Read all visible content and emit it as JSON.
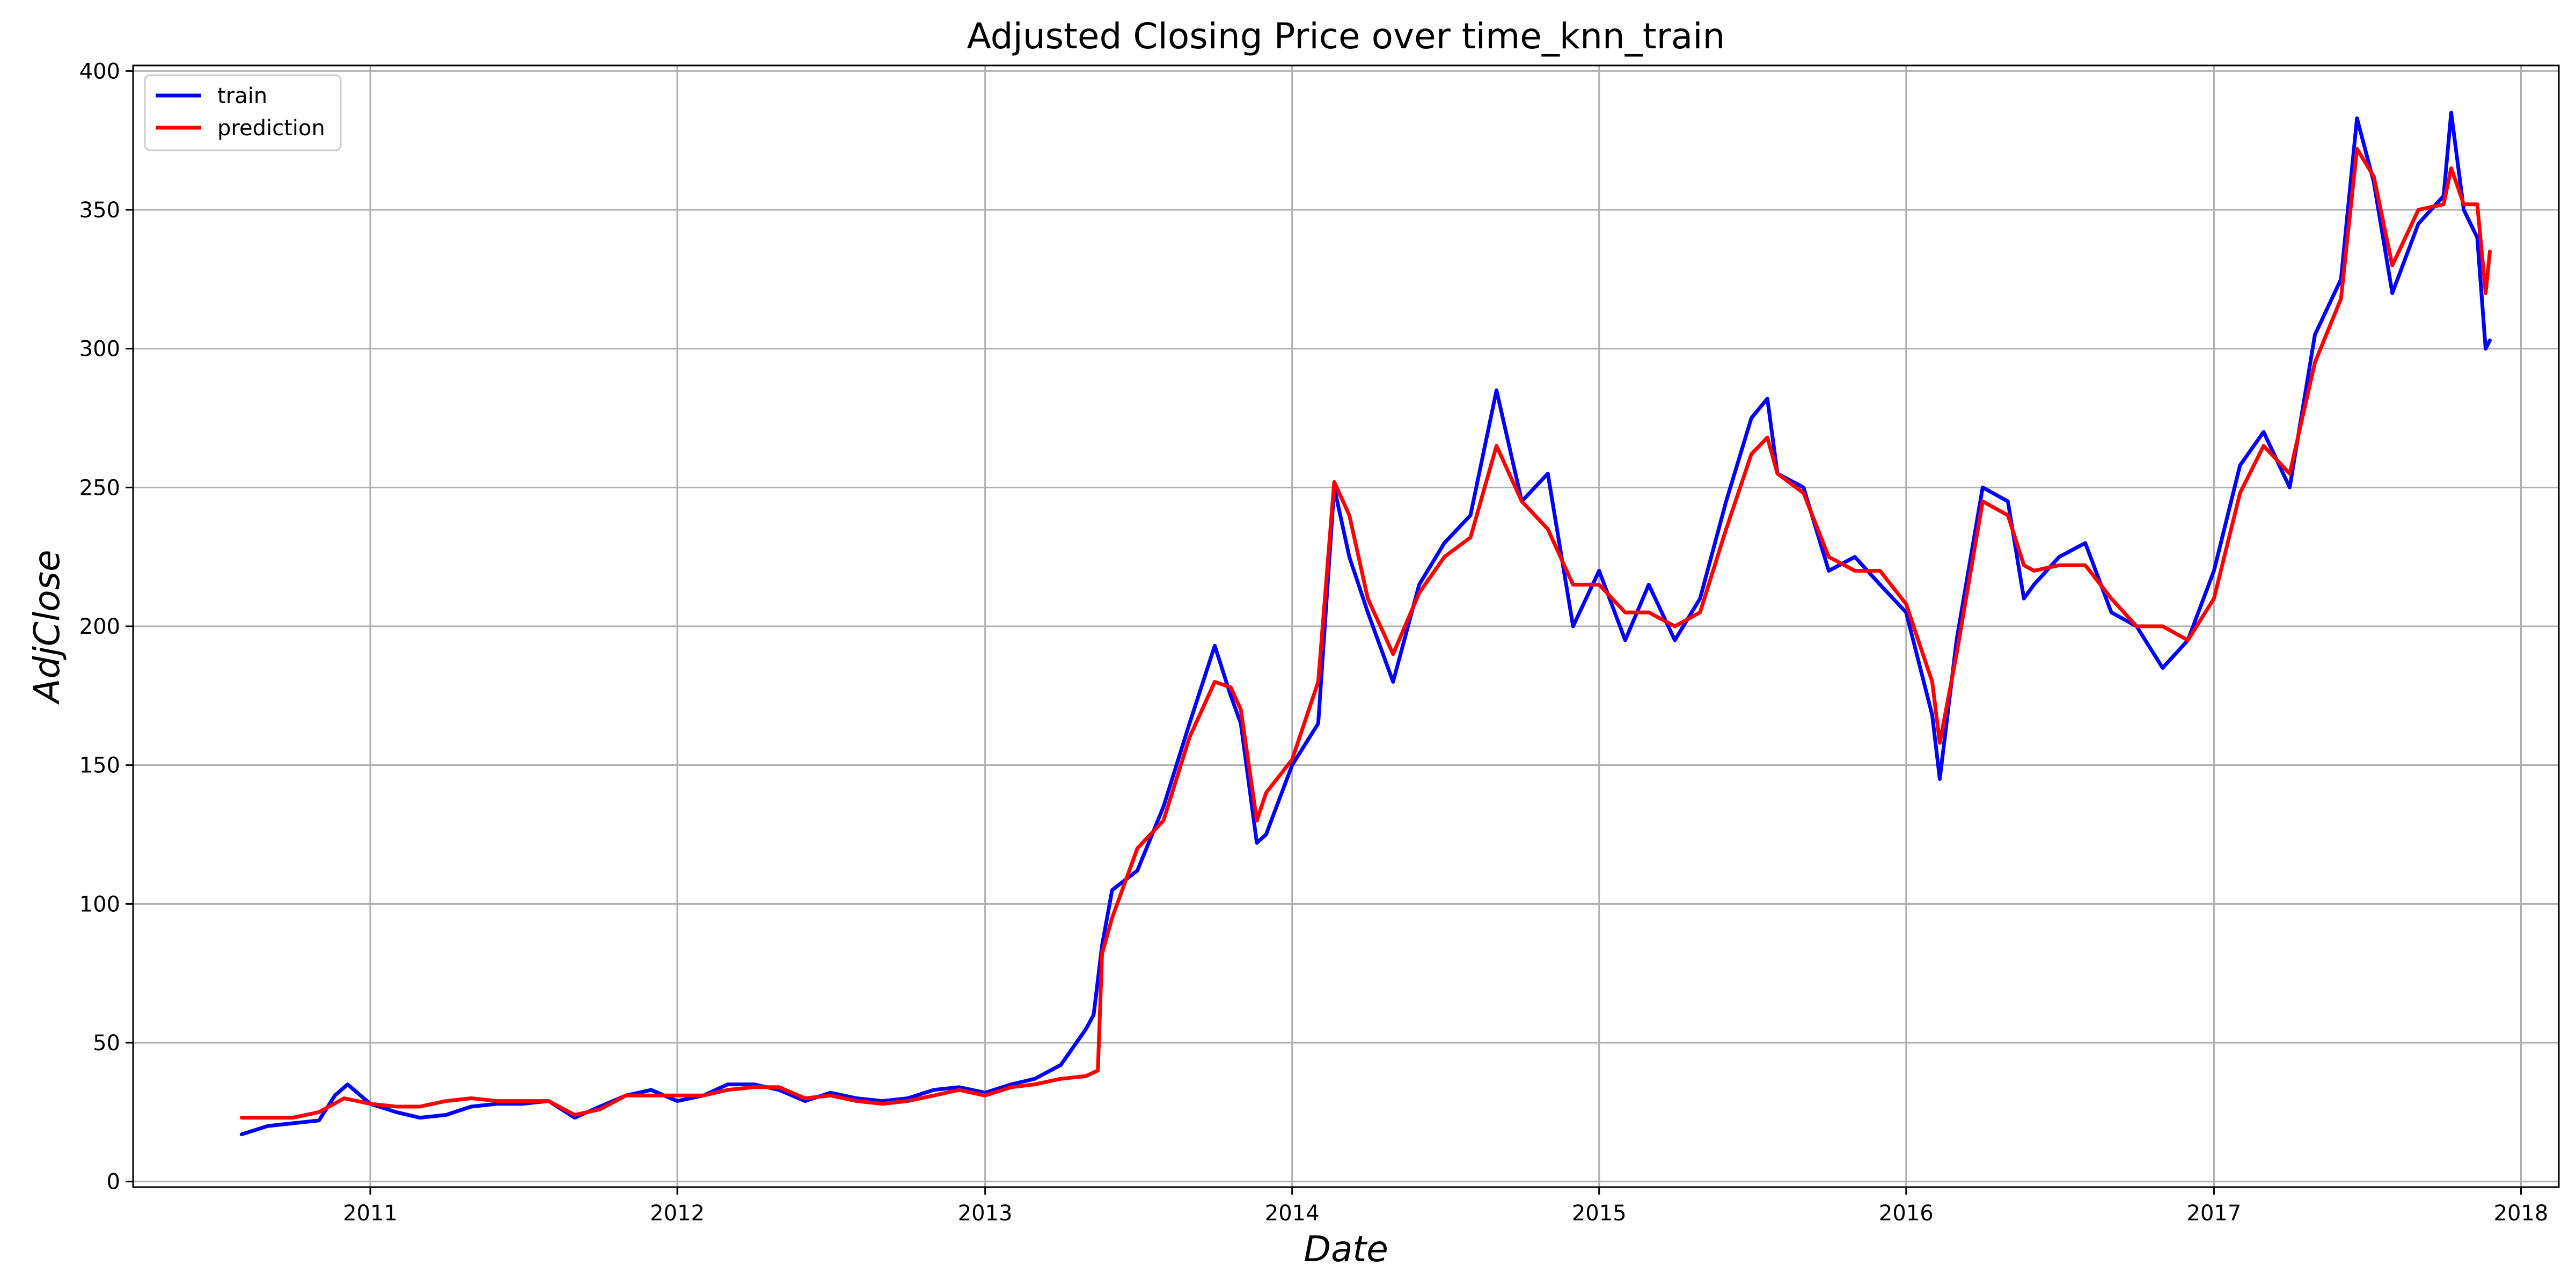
{
  "chart_data": {
    "type": "line",
    "title": "Adjusted Closing Price over time_knn_train",
    "xlabel": "Date",
    "ylabel": "AdjClose",
    "x_axis_type": "date",
    "xlim": [
      "2010-03-25",
      "2018-02-15"
    ],
    "ylim": [
      -2,
      402
    ],
    "x_ticks": [
      {
        "date": "2011-01-01",
        "label": "2011"
      },
      {
        "date": "2012-01-01",
        "label": "2012"
      },
      {
        "date": "2013-01-01",
        "label": "2013"
      },
      {
        "date": "2014-01-01",
        "label": "2014"
      },
      {
        "date": "2015-01-01",
        "label": "2015"
      },
      {
        "date": "2016-01-01",
        "label": "2016"
      },
      {
        "date": "2017-01-01",
        "label": "2017"
      },
      {
        "date": "2018-01-01",
        "label": "2018"
      }
    ],
    "y_ticks": [
      0,
      50,
      100,
      150,
      200,
      250,
      300,
      350,
      400
    ],
    "grid": true,
    "legend_position": "top-left",
    "series": [
      {
        "name": "train",
        "color": "#0000ff",
        "points": [
          [
            "2010-08-01",
            17
          ],
          [
            "2010-09-01",
            20
          ],
          [
            "2010-10-01",
            21
          ],
          [
            "2010-11-01",
            22
          ],
          [
            "2010-11-20",
            31
          ],
          [
            "2010-12-05",
            35
          ],
          [
            "2011-01-01",
            28
          ],
          [
            "2011-02-01",
            25
          ],
          [
            "2011-03-01",
            23
          ],
          [
            "2011-04-01",
            24
          ],
          [
            "2011-05-01",
            27
          ],
          [
            "2011-06-01",
            28
          ],
          [
            "2011-07-01",
            28
          ],
          [
            "2011-08-01",
            29
          ],
          [
            "2011-09-01",
            23
          ],
          [
            "2011-10-01",
            27
          ],
          [
            "2011-11-01",
            31
          ],
          [
            "2011-12-01",
            33
          ],
          [
            "2012-01-01",
            29
          ],
          [
            "2012-02-01",
            31
          ],
          [
            "2012-03-01",
            35
          ],
          [
            "2012-04-01",
            35
          ],
          [
            "2012-05-01",
            33
          ],
          [
            "2012-06-01",
            29
          ],
          [
            "2012-07-01",
            32
          ],
          [
            "2012-08-01",
            30
          ],
          [
            "2012-09-01",
            29
          ],
          [
            "2012-10-01",
            30
          ],
          [
            "2012-11-01",
            33
          ],
          [
            "2012-12-01",
            34
          ],
          [
            "2013-01-01",
            32
          ],
          [
            "2013-02-01",
            35
          ],
          [
            "2013-03-01",
            37
          ],
          [
            "2013-04-01",
            42
          ],
          [
            "2013-05-01",
            55
          ],
          [
            "2013-05-10",
            60
          ],
          [
            "2013-05-20",
            85
          ],
          [
            "2013-06-01",
            105
          ],
          [
            "2013-07-01",
            112
          ],
          [
            "2013-08-01",
            135
          ],
          [
            "2013-09-01",
            165
          ],
          [
            "2013-10-01",
            193
          ],
          [
            "2013-10-20",
            175
          ],
          [
            "2013-11-01",
            165
          ],
          [
            "2013-11-20",
            122
          ],
          [
            "2013-12-01",
            125
          ],
          [
            "2014-01-01",
            150
          ],
          [
            "2014-02-01",
            165
          ],
          [
            "2014-02-20",
            250
          ],
          [
            "2014-03-10",
            225
          ],
          [
            "2014-04-01",
            205
          ],
          [
            "2014-05-01",
            180
          ],
          [
            "2014-06-01",
            215
          ],
          [
            "2014-07-01",
            230
          ],
          [
            "2014-08-01",
            240
          ],
          [
            "2014-09-01",
            285
          ],
          [
            "2014-10-01",
            245
          ],
          [
            "2014-11-01",
            255
          ],
          [
            "2014-12-01",
            200
          ],
          [
            "2015-01-01",
            220
          ],
          [
            "2015-02-01",
            195
          ],
          [
            "2015-03-01",
            215
          ],
          [
            "2015-04-01",
            195
          ],
          [
            "2015-05-01",
            210
          ],
          [
            "2015-06-01",
            245
          ],
          [
            "2015-07-01",
            275
          ],
          [
            "2015-07-20",
            282
          ],
          [
            "2015-08-01",
            255
          ],
          [
            "2015-09-01",
            250
          ],
          [
            "2015-10-01",
            220
          ],
          [
            "2015-11-01",
            225
          ],
          [
            "2015-12-01",
            215
          ],
          [
            "2016-01-01",
            205
          ],
          [
            "2016-02-01",
            168
          ],
          [
            "2016-02-10",
            145
          ],
          [
            "2016-03-01",
            195
          ],
          [
            "2016-04-01",
            250
          ],
          [
            "2016-05-01",
            245
          ],
          [
            "2016-05-20",
            210
          ],
          [
            "2016-06-01",
            215
          ],
          [
            "2016-07-01",
            225
          ],
          [
            "2016-08-01",
            230
          ],
          [
            "2016-09-01",
            205
          ],
          [
            "2016-10-01",
            200
          ],
          [
            "2016-11-01",
            185
          ],
          [
            "2016-12-01",
            195
          ],
          [
            "2017-01-01",
            220
          ],
          [
            "2017-02-01",
            258
          ],
          [
            "2017-03-01",
            270
          ],
          [
            "2017-04-01",
            250
          ],
          [
            "2017-05-01",
            305
          ],
          [
            "2017-06-01",
            325
          ],
          [
            "2017-06-20",
            383
          ],
          [
            "2017-07-10",
            360
          ],
          [
            "2017-08-01",
            320
          ],
          [
            "2017-09-01",
            345
          ],
          [
            "2017-10-01",
            355
          ],
          [
            "2017-10-10",
            385
          ],
          [
            "2017-10-25",
            350
          ],
          [
            "2017-11-10",
            340
          ],
          [
            "2017-11-20",
            300
          ],
          [
            "2017-11-25",
            303
          ]
        ]
      },
      {
        "name": "prediction",
        "color": "#ff0000",
        "points": [
          [
            "2010-08-01",
            23
          ],
          [
            "2010-09-01",
            23
          ],
          [
            "2010-10-01",
            23
          ],
          [
            "2010-11-01",
            25
          ],
          [
            "2010-12-01",
            30
          ],
          [
            "2011-01-01",
            28
          ],
          [
            "2011-02-01",
            27
          ],
          [
            "2011-03-01",
            27
          ],
          [
            "2011-04-01",
            29
          ],
          [
            "2011-05-01",
            30
          ],
          [
            "2011-06-01",
            29
          ],
          [
            "2011-07-01",
            29
          ],
          [
            "2011-08-01",
            29
          ],
          [
            "2011-09-01",
            24
          ],
          [
            "2011-10-01",
            26
          ],
          [
            "2011-11-01",
            31
          ],
          [
            "2011-12-01",
            31
          ],
          [
            "2012-01-01",
            31
          ],
          [
            "2012-02-01",
            31
          ],
          [
            "2012-03-01",
            33
          ],
          [
            "2012-04-01",
            34
          ],
          [
            "2012-05-01",
            34
          ],
          [
            "2012-06-01",
            30
          ],
          [
            "2012-07-01",
            31
          ],
          [
            "2012-08-01",
            29
          ],
          [
            "2012-09-01",
            28
          ],
          [
            "2012-10-01",
            29
          ],
          [
            "2012-11-01",
            31
          ],
          [
            "2012-12-01",
            33
          ],
          [
            "2013-01-01",
            31
          ],
          [
            "2013-02-01",
            34
          ],
          [
            "2013-03-01",
            35
          ],
          [
            "2013-04-01",
            37
          ],
          [
            "2013-05-01",
            38
          ],
          [
            "2013-05-15",
            40
          ],
          [
            "2013-05-20",
            82
          ],
          [
            "2013-06-01",
            95
          ],
          [
            "2013-07-01",
            120
          ],
          [
            "2013-08-01",
            130
          ],
          [
            "2013-09-01",
            160
          ],
          [
            "2013-10-01",
            180
          ],
          [
            "2013-10-20",
            178
          ],
          [
            "2013-11-01",
            170
          ],
          [
            "2013-11-20",
            130
          ],
          [
            "2013-12-01",
            140
          ],
          [
            "2014-01-01",
            152
          ],
          [
            "2014-02-01",
            180
          ],
          [
            "2014-02-20",
            252
          ],
          [
            "2014-03-10",
            240
          ],
          [
            "2014-04-01",
            210
          ],
          [
            "2014-05-01",
            190
          ],
          [
            "2014-06-01",
            212
          ],
          [
            "2014-07-01",
            225
          ],
          [
            "2014-08-01",
            232
          ],
          [
            "2014-09-01",
            265
          ],
          [
            "2014-10-01",
            245
          ],
          [
            "2014-11-01",
            235
          ],
          [
            "2014-12-01",
            215
          ],
          [
            "2015-01-01",
            215
          ],
          [
            "2015-02-01",
            205
          ],
          [
            "2015-03-01",
            205
          ],
          [
            "2015-04-01",
            200
          ],
          [
            "2015-05-01",
            205
          ],
          [
            "2015-06-01",
            235
          ],
          [
            "2015-07-01",
            262
          ],
          [
            "2015-07-20",
            268
          ],
          [
            "2015-08-01",
            255
          ],
          [
            "2015-09-01",
            248
          ],
          [
            "2015-10-01",
            225
          ],
          [
            "2015-11-01",
            220
          ],
          [
            "2015-12-01",
            220
          ],
          [
            "2016-01-01",
            208
          ],
          [
            "2016-02-01",
            180
          ],
          [
            "2016-02-10",
            158
          ],
          [
            "2016-03-01",
            190
          ],
          [
            "2016-04-01",
            245
          ],
          [
            "2016-05-01",
            240
          ],
          [
            "2016-05-20",
            222
          ],
          [
            "2016-06-01",
            220
          ],
          [
            "2016-07-01",
            222
          ],
          [
            "2016-08-01",
            222
          ],
          [
            "2016-09-01",
            210
          ],
          [
            "2016-10-01",
            200
          ],
          [
            "2016-11-01",
            200
          ],
          [
            "2016-12-01",
            195
          ],
          [
            "2017-01-01",
            210
          ],
          [
            "2017-02-01",
            248
          ],
          [
            "2017-03-01",
            265
          ],
          [
            "2017-04-01",
            255
          ],
          [
            "2017-05-01",
            295
          ],
          [
            "2017-06-01",
            318
          ],
          [
            "2017-06-20",
            372
          ],
          [
            "2017-07-10",
            362
          ],
          [
            "2017-08-01",
            330
          ],
          [
            "2017-09-01",
            350
          ],
          [
            "2017-10-01",
            352
          ],
          [
            "2017-10-10",
            365
          ],
          [
            "2017-10-25",
            352
          ],
          [
            "2017-11-10",
            352
          ],
          [
            "2017-11-20",
            320
          ],
          [
            "2017-11-25",
            335
          ]
        ]
      }
    ]
  }
}
